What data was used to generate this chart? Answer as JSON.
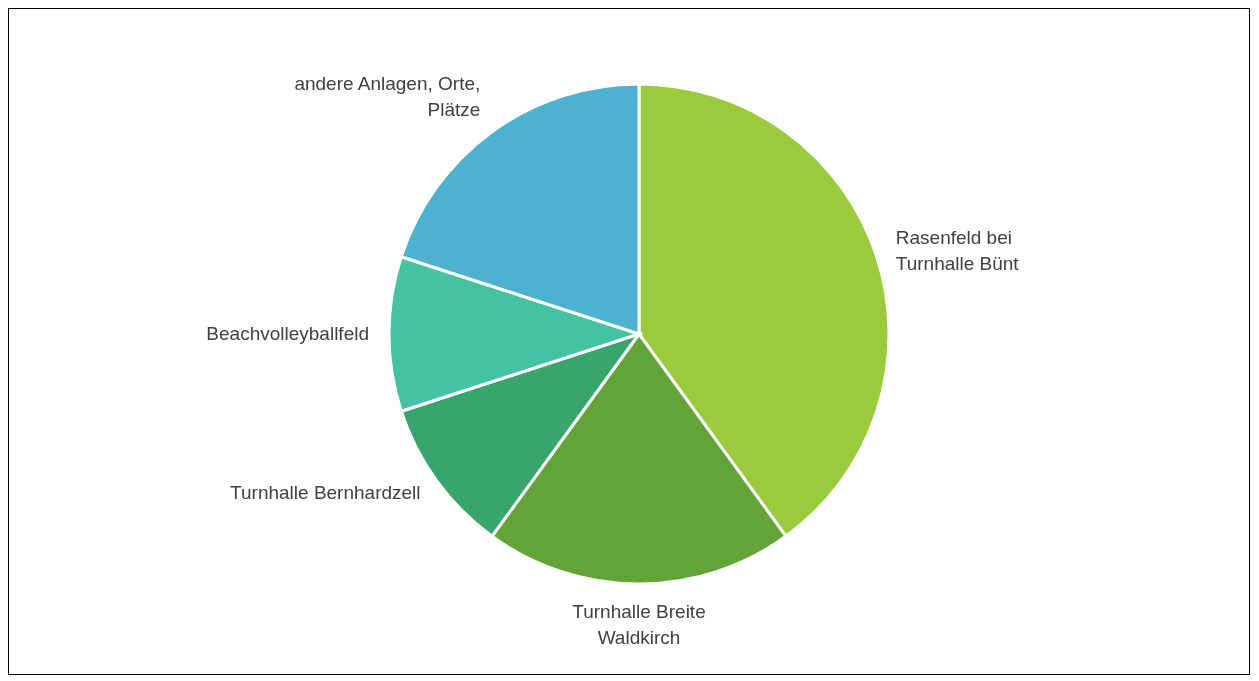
{
  "chart_data": {
    "type": "pie",
    "categories": [
      "Rasenfeld bei Turnhalle Bünt",
      "Turnhalle Breite Waldkirch",
      "Turnhalle Bernhardzell",
      "Beachvolleyballfeld",
      "andere Anlagen, Orte, Plätze"
    ],
    "values": [
      40,
      20,
      10,
      10,
      20
    ],
    "colors": [
      "#9acb3c",
      "#62a438",
      "#38a56c",
      "#45c1a4",
      "#4db1d0"
    ],
    "legend": false
  }
}
